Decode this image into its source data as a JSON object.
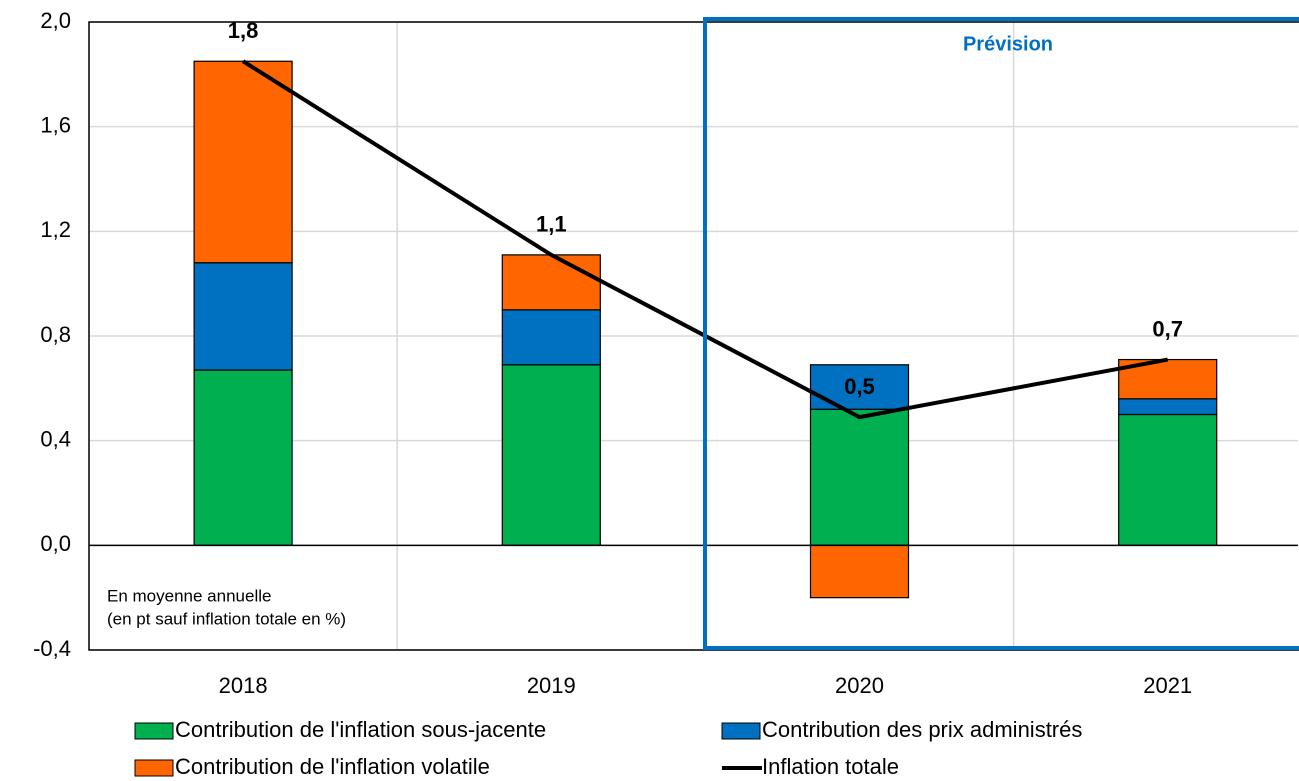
{
  "chart_data": {
    "type": "bar",
    "categories": [
      "2018",
      "2019",
      "2020",
      "2021"
    ],
    "series": [
      {
        "name": "Contribution de l'inflation sous-jacente",
        "color": "#00b050",
        "values": [
          0.67,
          0.69,
          0.52,
          0.5
        ]
      },
      {
        "name": "Contribution des prix administrés",
        "color": "#0070c0",
        "values": [
          0.41,
          0.21,
          0.17,
          0.06
        ]
      },
      {
        "name": "Contribution de l'inflation volatile",
        "color": "#ff6600",
        "values": [
          0.77,
          0.21,
          -0.2,
          0.15
        ]
      },
      {
        "name": "Inflation totale",
        "color": "#000000",
        "type": "line",
        "values": [
          1.85,
          1.11,
          0.49,
          0.71
        ],
        "value_labels": [
          "1,8",
          "1,1",
          "0,5",
          "0,7"
        ]
      }
    ],
    "ylim": [
      -0.4,
      2.0
    ],
    "yticks": [
      {
        "value": -0.4,
        "label": "-0,4"
      },
      {
        "value": 0,
        "label": "0,0"
      },
      {
        "value": 0.4,
        "label": "0,4"
      },
      {
        "value": 0.8,
        "label": "0,8"
      },
      {
        "value": 1.2,
        "label": "1,2"
      },
      {
        "value": 1.6,
        "label": "1,6"
      },
      {
        "value": 2.0,
        "label": "2,0"
      }
    ],
    "grid": true,
    "annotations": [
      "Prévision",
      "En moyenne annuelle",
      "(en pt sauf inflation totale en %)"
    ]
  }
}
